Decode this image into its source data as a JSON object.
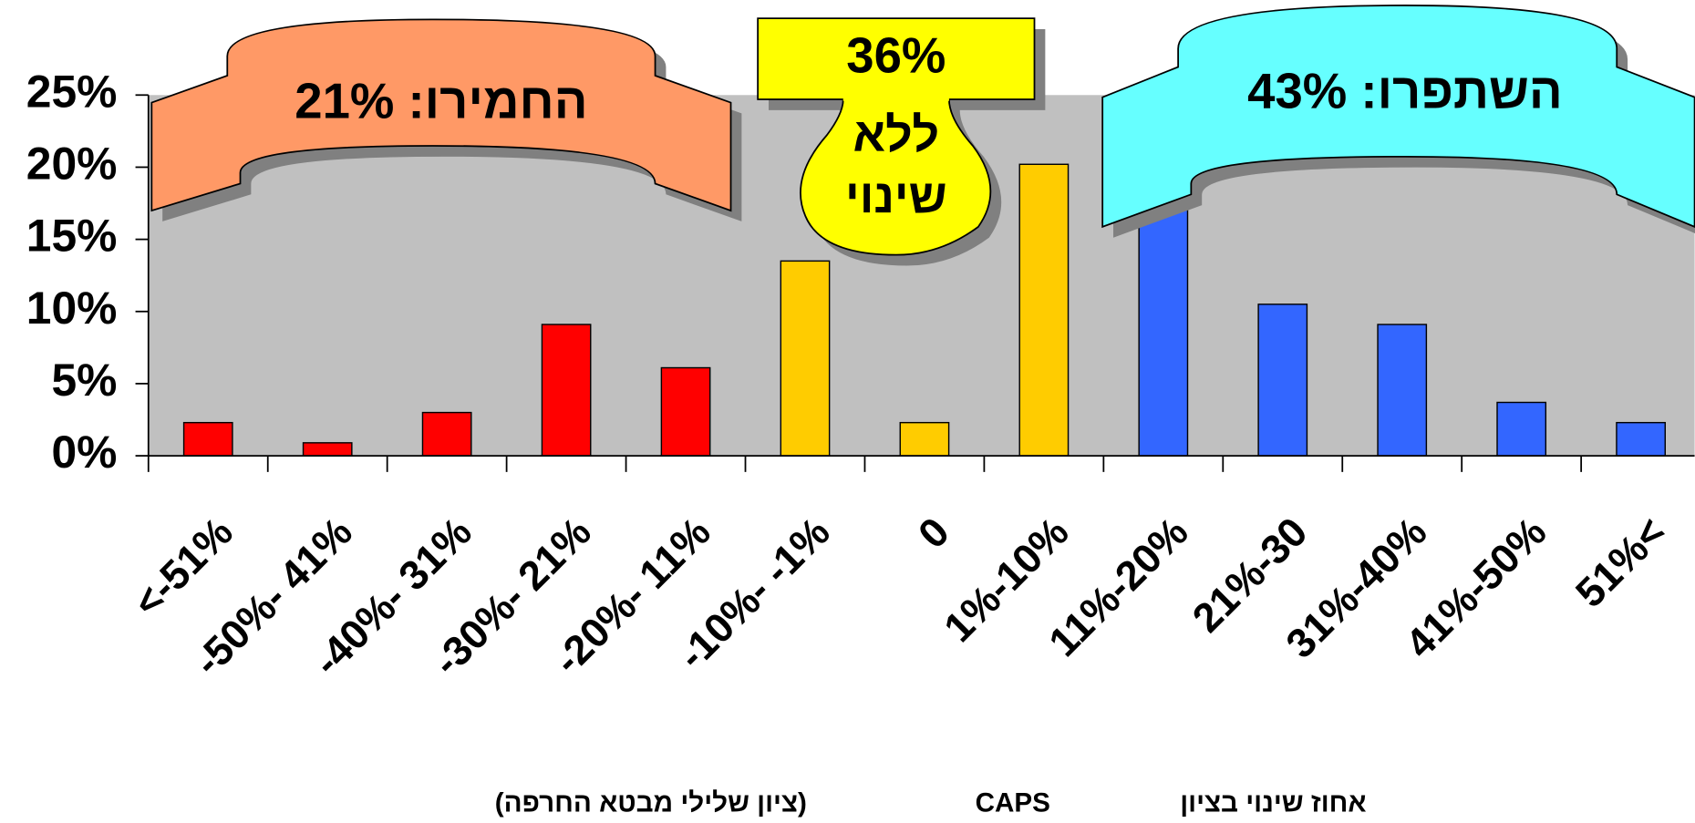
{
  "chart_data": {
    "type": "bar",
    "categories": [
      "<-51%",
      "-50%- 41%",
      "-40%- 31%",
      "-30%- 21%",
      "-20%- 11%",
      "-10%- -1%",
      "0",
      "1%-10%",
      "11%-20%",
      "21%-30",
      "31%-40%",
      "41%-50%",
      "51%<"
    ],
    "values": [
      2.3,
      0.9,
      3.0,
      9.1,
      6.1,
      13.5,
      2.3,
      20.2,
      17.3,
      10.5,
      9.1,
      3.7,
      2.3
    ],
    "colors": [
      "#ff0000",
      "#ff0000",
      "#ff0000",
      "#ff0000",
      "#ff0000",
      "#ffcc00",
      "#ffcc00",
      "#ffcc00",
      "#3366ff",
      "#3366ff",
      "#3366ff",
      "#3366ff",
      "#3366ff"
    ],
    "ylim": [
      0,
      25
    ],
    "yticks": [
      {
        "value": 0,
        "label": "0%"
      },
      {
        "value": 5,
        "label": "5%"
      },
      {
        "value": 10,
        "label": "10%"
      },
      {
        "value": 15,
        "label": "15%"
      },
      {
        "value": 20,
        "label": "20%"
      },
      {
        "value": 25,
        "label": "25%"
      }
    ],
    "annotations": {
      "worsened": "החמירו: 21%",
      "unchanged_pct": "36%",
      "unchanged_1": "ללא",
      "unchanged_2": "שינוי",
      "improved": "השתפרו: 43%"
    },
    "xlabel": [
      "אחוז שינוי בציון",
      "CAPS",
      "(ציון שלילי מבטא החרפה)"
    ]
  }
}
